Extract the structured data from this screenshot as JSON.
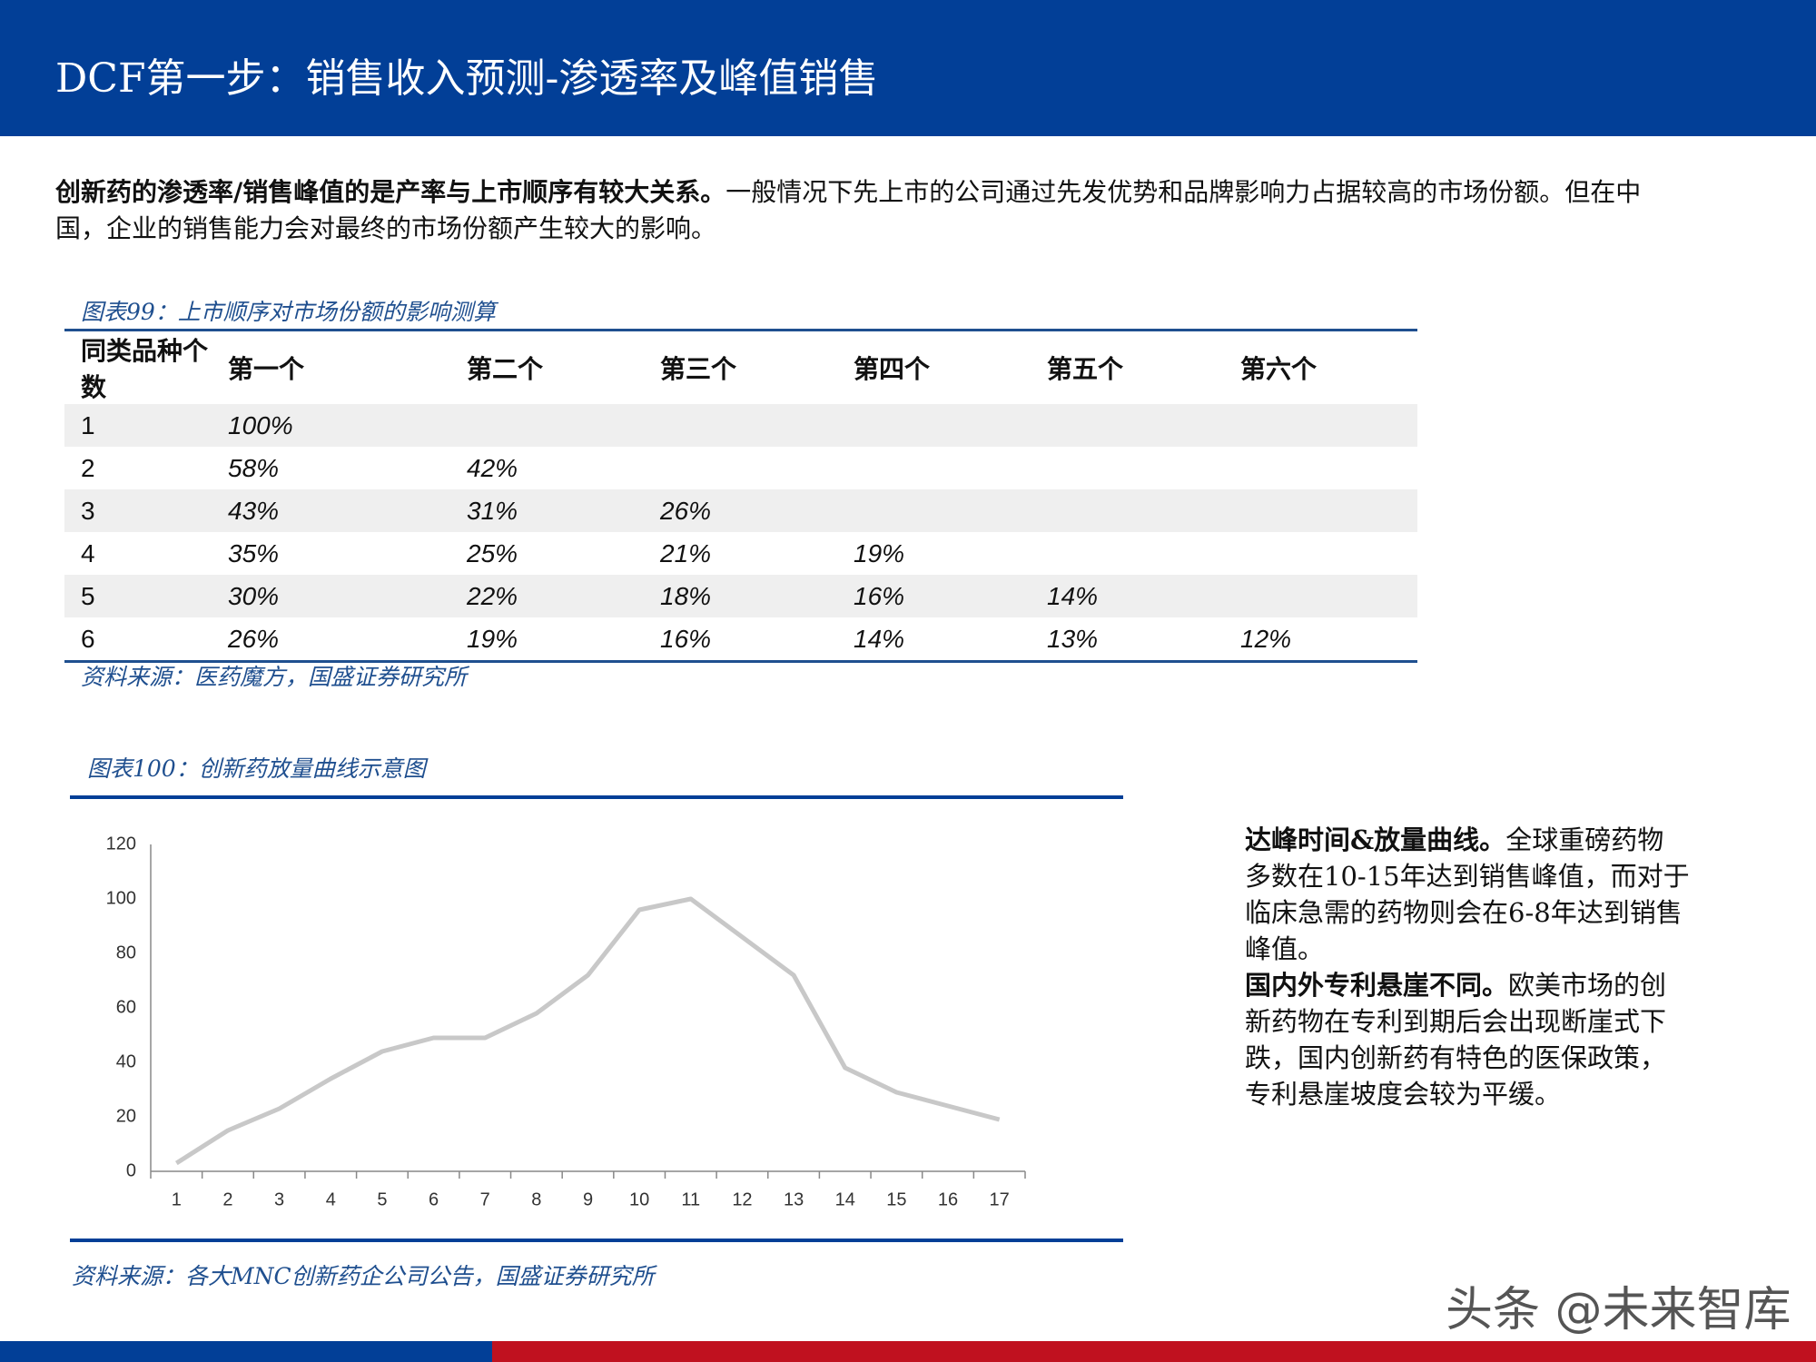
{
  "header": {
    "title": "DCF第一步：销售收入预测-渗透率及峰值销售"
  },
  "intro": {
    "lead": "创新药的渗透率/销售峰值的是产率与上市顺序有较大关系。",
    "body": "一般情况下先上市的公司通过先发优势和品牌影响力占据较高的市场份额。但在中国，企业的销售能力会对最终的市场份额产生较大的影响。"
  },
  "table": {
    "caption": "图表99：上市顺序对市场份额的影响测算",
    "header": [
      "同类品种个数",
      "第一个",
      "第二个",
      "第三个",
      "第四个",
      "第五个",
      "第六个"
    ],
    "rows": [
      [
        "1",
        "100%"
      ],
      [
        "2",
        "58%",
        "42%"
      ],
      [
        "3",
        "43%",
        "31%",
        "26%"
      ],
      [
        "4",
        "35%",
        "25%",
        "21%",
        "19%"
      ],
      [
        "5",
        "30%",
        "22%",
        "18%",
        "16%",
        "14%"
      ],
      [
        "6",
        "26%",
        "19%",
        "16%",
        "14%",
        "13%",
        "12%"
      ]
    ],
    "source": "资料来源：医药魔方，国盛证券研究所"
  },
  "chart_caption": "图表100：创新药放量曲线示意图",
  "chart_data": {
    "type": "line",
    "categories": [
      "1",
      "2",
      "3",
      "4",
      "5",
      "6",
      "7",
      "8",
      "9",
      "10",
      "11",
      "12",
      "13",
      "14",
      "15",
      "16",
      "17"
    ],
    "values": [
      3,
      15,
      23,
      34,
      44,
      49,
      49,
      58,
      72,
      96,
      100,
      86,
      72,
      38,
      29,
      24,
      19
    ],
    "color": "#c8c8c8",
    "ylim": [
      0,
      120
    ],
    "yticks": [
      0,
      20,
      40,
      60,
      80,
      100,
      120
    ],
    "grid": false
  },
  "chart_source": "资料来源：各大MNC创新药企公司公告，国盛证券研究所",
  "side": {
    "paragraphs": [
      {
        "lead": "达峰时间&放量曲线。",
        "body": "全球重磅药物多数在10-15年达到销售峰值，而对于临床急需的药物则会在6-8年达到销售峰值。"
      },
      {
        "lead": "国内外专利悬崖不同。",
        "body": "欧美市场的创新药物在专利到期后会出现断崖式下跌，国内创新药有特色的医保政策，专利悬崖坡度会较为平缓。"
      }
    ]
  },
  "watermark": "头条 @未来智库"
}
